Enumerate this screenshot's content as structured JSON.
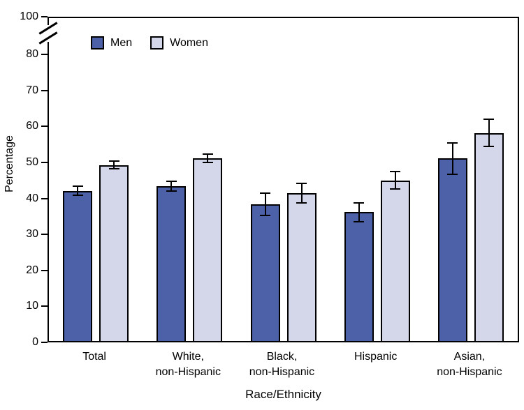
{
  "chart_data": {
    "type": "bar",
    "title": "",
    "xlabel": "Race/Ethnicity",
    "ylabel": "Percentage",
    "categories": [
      "Total",
      "White,\nnon-Hispanic",
      "Black,\nnon-Hispanic",
      "Hispanic",
      "Asian,\nnon-Hispanic"
    ],
    "series": [
      {
        "name": "Men",
        "color": "#4d61a9",
        "values": [
          41.7,
          43.0,
          37.9,
          35.8,
          50.7
        ],
        "error": [
          1.5,
          1.6,
          3.3,
          2.8,
          4.5
        ]
      },
      {
        "name": "Women",
        "color": "#d4d6e9",
        "values": [
          48.9,
          50.8,
          41.1,
          44.6,
          57.8
        ],
        "error": [
          1.3,
          1.4,
          2.9,
          2.6,
          4.0
        ]
      }
    ],
    "yticks": [
      0,
      10,
      20,
      30,
      40,
      50,
      60,
      70,
      80,
      100
    ],
    "ylim": [
      0,
      100
    ],
    "axis_break_between": [
      80,
      100
    ],
    "grid": false,
    "legend_position": "top-left-inside",
    "bar_edge_color": "#000000",
    "error_bar_color": "#000000"
  }
}
